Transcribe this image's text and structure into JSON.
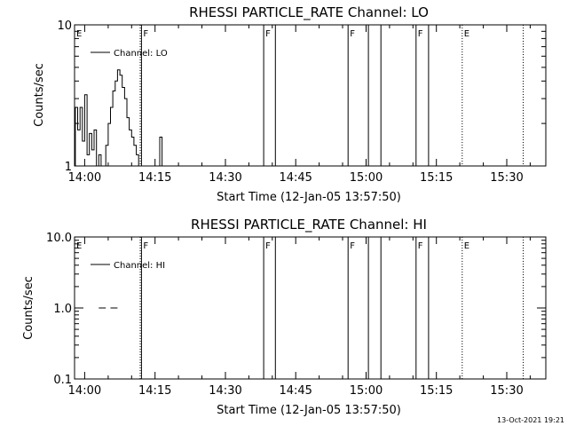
{
  "footer": {
    "timestamp": "13-Oct-2021 19:21"
  },
  "chart_data": [
    {
      "type": "line",
      "title": "RHESSI PARTICLE_RATE Channel: LO",
      "xlabel": "Start Time (12-Jan-05 13:57:50)",
      "ylabel": "Counts/sec",
      "yscale": "log",
      "xlim": [
        "13:57:50",
        "15:38:20"
      ],
      "ylim": [
        1,
        10
      ],
      "x_ticks": [
        "14:00",
        "14:15",
        "14:30",
        "14:45",
        "15:00",
        "15:15",
        "15:30"
      ],
      "y_ticks": [
        "1",
        "10"
      ],
      "legend": {
        "label": "Channel: LO",
        "placement": "top-left"
      },
      "flag_markers": [
        {
          "label": "E",
          "time": "13:57:50",
          "style": "none"
        },
        {
          "label": "F",
          "time": "14:12:06",
          "style": "solid"
        },
        {
          "label": "F",
          "time": "14:38:10",
          "style": "solid"
        },
        {
          "label": "F",
          "time": "14:56:10",
          "style": "solid"
        },
        {
          "label": "F",
          "time": "15:10:40",
          "style": "solid"
        },
        {
          "label": "E",
          "time": "15:20:30",
          "style": "dotted"
        }
      ],
      "solid_lines": [
        "14:12:06",
        "14:38:10",
        "14:40:40",
        "14:56:10",
        "15:00:30",
        "15:03:10",
        "15:10:40",
        "15:13:20"
      ],
      "dotted_lines": [
        "14:11:50",
        "15:20:30",
        "15:33:30"
      ],
      "series": [
        {
          "name": "Channel: LO",
          "segments": [
            [
              [
                "13:58:00",
                1
              ],
              [
                "13:58:00",
                2.6
              ],
              [
                "13:58:30",
                2.6
              ],
              [
                "13:58:30",
                1.8
              ],
              [
                "13:59:00",
                1.8
              ],
              [
                "13:59:00",
                2.6
              ],
              [
                "13:59:30",
                2.6
              ],
              [
                "13:59:30",
                1.5
              ],
              [
                "14:00:00",
                1.5
              ],
              [
                "14:00:00",
                3.2
              ],
              [
                "14:00:30",
                3.2
              ],
              [
                "14:00:30",
                1.2
              ],
              [
                "14:01:00",
                1.2
              ],
              [
                "14:01:00",
                1.7
              ],
              [
                "14:01:30",
                1.7
              ],
              [
                "14:01:30",
                1.3
              ],
              [
                "14:02:00",
                1.3
              ],
              [
                "14:02:00",
                1.8
              ],
              [
                "14:02:30",
                1.8
              ],
              [
                "14:02:30",
                1
              ],
              [
                "14:03:00",
                1
              ],
              [
                "14:03:00",
                1.2
              ],
              [
                "14:03:30",
                1.2
              ],
              [
                "14:03:30",
                1
              ]
            ],
            [
              [
                "14:04:30",
                1
              ],
              [
                "14:04:30",
                1.4
              ],
              [
                "14:05:00",
                1.4
              ],
              [
                "14:05:00",
                2
              ],
              [
                "14:05:30",
                2
              ],
              [
                "14:05:30",
                2.6
              ],
              [
                "14:06:00",
                2.6
              ],
              [
                "14:06:00",
                3.4
              ],
              [
                "14:06:30",
                3.4
              ],
              [
                "14:06:30",
                4
              ],
              [
                "14:07:00",
                4
              ],
              [
                "14:07:00",
                4.8
              ],
              [
                "14:07:30",
                4.8
              ],
              [
                "14:07:30",
                4.4
              ],
              [
                "14:08:00",
                4.4
              ],
              [
                "14:08:00",
                3.6
              ],
              [
                "14:08:30",
                3.6
              ],
              [
                "14:08:30",
                3
              ],
              [
                "14:09:00",
                3
              ],
              [
                "14:09:00",
                2.2
              ],
              [
                "14:09:30",
                2.2
              ],
              [
                "14:09:30",
                1.8
              ],
              [
                "14:10:00",
                1.8
              ],
              [
                "14:10:00",
                1.6
              ],
              [
                "14:10:30",
                1.6
              ],
              [
                "14:10:30",
                1.4
              ],
              [
                "14:11:00",
                1.4
              ],
              [
                "14:11:00",
                1.2
              ],
              [
                "14:11:30",
                1.2
              ],
              [
                "14:11:30",
                1
              ]
            ],
            [
              [
                "14:16:00",
                1
              ],
              [
                "14:16:00",
                1.6
              ],
              [
                "14:16:30",
                1.6
              ],
              [
                "14:16:30",
                1
              ]
            ]
          ]
        }
      ]
    },
    {
      "type": "line",
      "title": "RHESSI PARTICLE_RATE Channel: HI",
      "xlabel": "Start Time (12-Jan-05 13:57:50)",
      "ylabel": "Counts/sec",
      "yscale": "log",
      "xlim": [
        "13:57:50",
        "15:38:20"
      ],
      "ylim": [
        0.1,
        10
      ],
      "x_ticks": [
        "14:00",
        "14:15",
        "14:30",
        "14:45",
        "15:00",
        "15:15",
        "15:30"
      ],
      "y_ticks": [
        "0.1",
        "1.0",
        "10.0"
      ],
      "legend": {
        "label": "Channel: HI",
        "placement": "top-left"
      },
      "flag_markers": [
        {
          "label": "E",
          "time": "13:57:50",
          "style": "none"
        },
        {
          "label": "F",
          "time": "14:12:06",
          "style": "solid"
        },
        {
          "label": "F",
          "time": "14:38:10",
          "style": "solid"
        },
        {
          "label": "F",
          "time": "14:56:10",
          "style": "solid"
        },
        {
          "label": "F",
          "time": "15:10:40",
          "style": "solid"
        },
        {
          "label": "E",
          "time": "15:20:30",
          "style": "dotted"
        }
      ],
      "solid_lines": [
        "14:12:06",
        "14:38:10",
        "14:40:40",
        "14:56:10",
        "15:00:30",
        "15:03:10",
        "15:10:40",
        "15:13:20"
      ],
      "dotted_lines": [
        "14:11:50",
        "15:20:30",
        "15:33:30"
      ],
      "series": [
        {
          "name": "Channel: HI",
          "segments": [
            [
              [
                "14:03:00",
                1
              ],
              [
                "14:04:30",
                1
              ]
            ],
            [
              [
                "14:05:30",
                1
              ],
              [
                "14:07:00",
                1
              ]
            ]
          ]
        }
      ]
    }
  ]
}
